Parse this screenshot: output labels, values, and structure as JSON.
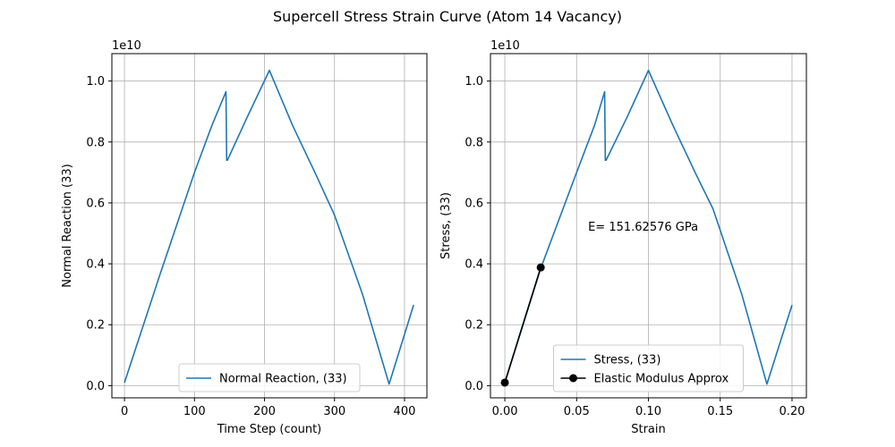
{
  "figure_title": "Supercell Stress Strain Curve (Atom 14 Vacancy)",
  "colors": {
    "series": "#1f77b4",
    "modulus": "#000000",
    "grid": "#b0b0b0"
  },
  "chart_data": [
    {
      "type": "line",
      "xlabel": "Time Step (count)",
      "ylabel": "Normal Reaction (33)",
      "offset_label": "1e10",
      "xlim": [
        -18,
        432
      ],
      "ylim": [
        -0.04,
        1.09
      ],
      "y_scale": 10000000000.0,
      "xticks": [
        0,
        100,
        200,
        300,
        400
      ],
      "xtick_labels": [
        "0",
        "100",
        "200",
        "300",
        "400"
      ],
      "yticks": [
        0.0,
        0.2,
        0.4,
        0.6,
        0.8,
        1.0
      ],
      "ytick_labels": [
        "0.0",
        "0.2",
        "0.4",
        "0.6",
        "0.8",
        "1.0"
      ],
      "grid": true,
      "legend_position": "lower-center",
      "series": [
        {
          "name": "Normal Reaction, (33)",
          "x": [
            0,
            50,
            100,
            125,
            145,
            146,
            147,
            175,
            207,
            240,
            273,
            300,
            340,
            378,
            413
          ],
          "y": [
            0.01,
            0.36,
            0.7,
            0.855,
            0.965,
            0.74,
            0.74,
            0.88,
            1.035,
            0.855,
            0.695,
            0.56,
            0.3,
            0.005,
            0.265
          ]
        }
      ]
    },
    {
      "type": "line",
      "xlabel": "Strain",
      "ylabel": "Stress, (33)",
      "offset_label": "1e10",
      "xlim": [
        -0.01,
        0.21
      ],
      "ylim": [
        -0.04,
        1.09
      ],
      "y_scale": 10000000000.0,
      "xticks": [
        0.0,
        0.05,
        0.1,
        0.15,
        0.2
      ],
      "xtick_labels": [
        "0.00",
        "0.05",
        "0.10",
        "0.15",
        "0.20"
      ],
      "yticks": [
        0.0,
        0.2,
        0.4,
        0.6,
        0.8,
        1.0
      ],
      "ytick_labels": [
        "0.0",
        "0.2",
        "0.4",
        "0.6",
        "0.8",
        "1.0"
      ],
      "grid": true,
      "legend_position": "lower-center",
      "annotation": {
        "text": "E= 151.62576 GPa",
        "x": 0.058,
        "y": 0.52
      },
      "series": [
        {
          "name": "Stress, (33)",
          "x": [
            0.0,
            0.025,
            0.05,
            0.0625,
            0.0695,
            0.07,
            0.0705,
            0.085,
            0.1,
            0.117,
            0.133,
            0.145,
            0.165,
            0.1825,
            0.2
          ],
          "y": [
            0.01,
            0.385,
            0.7,
            0.855,
            0.965,
            0.74,
            0.74,
            0.88,
            1.035,
            0.855,
            0.695,
            0.58,
            0.3,
            0.005,
            0.265
          ]
        },
        {
          "name": "Elastic Modulus Approx",
          "x": [
            0.0,
            0.025
          ],
          "y": [
            0.01,
            0.388
          ],
          "markers": true
        }
      ]
    }
  ]
}
